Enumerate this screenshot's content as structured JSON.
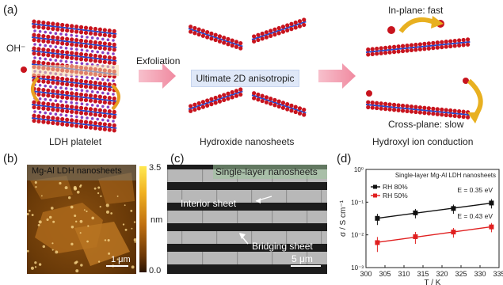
{
  "panels": {
    "a": {
      "label": "(a)",
      "ion_label": "OH⁻",
      "arrow1_label": "Exfoliation",
      "banner": "Ultimate 2D anisotropic",
      "in_plane": "In-plane: fast",
      "cross_plane": "Cross-plane: slow",
      "captions": [
        "LDH platelet",
        "Hydroxide nanosheets",
        "Hydroxyl ion conduction"
      ]
    },
    "b": {
      "label": "(b)",
      "title": "Mg-Al LDH nanosheets",
      "scalebar": "1 μm",
      "colorbar_top": "3.5",
      "colorbar_mid": "nm",
      "colorbar_bottom": "0.0"
    },
    "c": {
      "label": "(c)",
      "title": "Single-layer nanosheets",
      "interior": "Interior sheet",
      "bridging": "Bridging sheet",
      "scalebar": "5 μm"
    },
    "d": {
      "label": "(d)"
    }
  },
  "colors": {
    "oxygen": "#c8141e",
    "metal": "#2a4fd0",
    "interlayer": "#8a3fbf",
    "arrow_pink": "#f4a0b0",
    "arrow_gold": "#e8b020",
    "banner_bg": "#dfe8f8",
    "afm_dark": "#3a1a04",
    "afm_light": "#f0b020",
    "series_black": "#111111",
    "series_red": "#e02020"
  },
  "chart_data": {
    "type": "scatter",
    "title": "Single-layer Mg-Al LDH nanosheets",
    "xlabel": "T / K",
    "ylabel": "σ / S cm⁻¹",
    "xlim": [
      300,
      335
    ],
    "ylim_log10": [
      -3,
      0
    ],
    "yscale": "log",
    "x_ticks": [
      "300",
      "305",
      "310",
      "315",
      "320",
      "325",
      "330",
      "335"
    ],
    "y_ticks": [
      "10⁻³",
      "10⁻²",
      "10⁻¹",
      "10⁰"
    ],
    "legend_position": "top-left",
    "series": [
      {
        "name": "RH 80%",
        "color": "#111111",
        "annotation": "E = 0.35 eV",
        "x": [
          303,
          313,
          323,
          333
        ],
        "y": [
          0.032,
          0.047,
          0.064,
          0.094
        ],
        "err": [
          0.012,
          0.015,
          0.02,
          0.03
        ]
      },
      {
        "name": "RH 50%",
        "color": "#e02020",
        "annotation": "E = 0.43 eV",
        "x": [
          303,
          313,
          323,
          333
        ],
        "y": [
          0.0058,
          0.0088,
          0.0122,
          0.0175
        ],
        "err": [
          0.0028,
          0.0035,
          0.004,
          0.0055
        ]
      }
    ]
  }
}
